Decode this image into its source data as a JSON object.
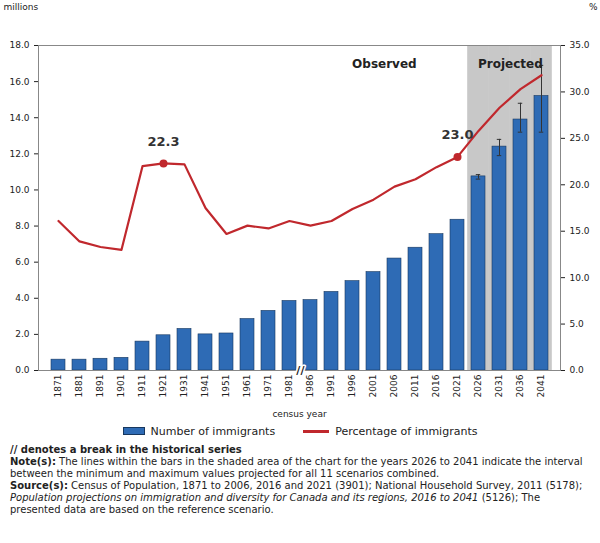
{
  "chart_data": {
    "type": "bar",
    "xlabel": "census year",
    "ylabel": "millions",
    "y2label": "%",
    "categories": [
      "1871",
      "1881",
      "1891",
      "1901",
      "1911",
      "1921",
      "1931",
      "1941",
      "1951",
      "1961",
      "1971",
      "1981",
      "1986",
      "1991",
      "1996",
      "2001",
      "2006",
      "2011",
      "2016",
      "2021",
      "2026",
      "2031",
      "2036",
      "2041"
    ],
    "series": [
      {
        "name": "Number of immigrants",
        "type": "bar",
        "color": "#2e6bb5",
        "values": [
          0.6,
          0.6,
          0.65,
          0.7,
          1.6,
          1.95,
          2.3,
          2.0,
          2.05,
          2.85,
          3.3,
          3.85,
          3.9,
          4.35,
          4.95,
          5.45,
          6.2,
          6.8,
          7.55,
          8.35,
          10.75,
          12.4,
          13.9,
          15.2
        ],
        "error_low": [
          null,
          null,
          null,
          null,
          null,
          null,
          null,
          null,
          null,
          null,
          null,
          null,
          null,
          null,
          null,
          null,
          null,
          null,
          null,
          null,
          10.6,
          11.9,
          13.2,
          13.2
        ],
        "error_high": [
          null,
          null,
          null,
          null,
          null,
          null,
          null,
          null,
          null,
          null,
          null,
          null,
          null,
          null,
          null,
          null,
          null,
          null,
          null,
          null,
          10.85,
          12.8,
          14.8,
          16.9
        ]
      },
      {
        "name": "Percentage of immigrants",
        "type": "line",
        "axis": "y2",
        "color": "#c0282d",
        "values": [
          16.1,
          13.9,
          13.3,
          13.0,
          22.0,
          22.3,
          22.2,
          17.5,
          14.7,
          15.6,
          15.3,
          16.1,
          15.6,
          16.1,
          17.4,
          18.4,
          19.8,
          20.6,
          21.9,
          23.0,
          25.8,
          28.3,
          30.3,
          31.8
        ]
      }
    ],
    "annotations": [
      {
        "series": "Percentage of immigrants",
        "category": "1921",
        "text": "22.3"
      },
      {
        "series": "Percentage of immigrants",
        "category": "2021",
        "text": "23.0"
      }
    ],
    "regions": [
      {
        "label": "Observed",
        "start": "1871",
        "end": "2021"
      },
      {
        "label": "Projected",
        "start": "2026",
        "end": "2041"
      }
    ],
    "axis_break": {
      "after": "1981",
      "symbol": "//"
    },
    "ylim": [
      0,
      18
    ],
    "yticks": [
      {
        "value": 0,
        "label": "0.0"
      },
      {
        "value": 2,
        "label": "2.0"
      },
      {
        "value": 4,
        "label": "4.0"
      },
      {
        "value": 6,
        "label": "6.0"
      },
      {
        "value": 8,
        "label": "8.0"
      },
      {
        "value": 10,
        "label": "10.0"
      },
      {
        "value": 12,
        "label": "12.0"
      },
      {
        "value": 14,
        "label": "14.0"
      },
      {
        "value": 16,
        "label": "16.0"
      },
      {
        "value": 18,
        "label": "18.0"
      }
    ],
    "y2lim": [
      0,
      35
    ],
    "y2ticks": [
      {
        "value": 0,
        "label": "0.0"
      },
      {
        "value": 5,
        "label": "5.0"
      },
      {
        "value": 10,
        "label": "10.0"
      },
      {
        "value": 15,
        "label": "15.0"
      },
      {
        "value": 20,
        "label": "20.0"
      },
      {
        "value": 25,
        "label": "25.0"
      },
      {
        "value": 30,
        "label": "30.0"
      },
      {
        "value": 35,
        "label": "35.0"
      }
    ],
    "grid": false,
    "legend": "bottom",
    "notes": [
      {
        "label": "// denotes a break in the historical series"
      },
      {
        "label": "Note(s):",
        "text": "The lines within the bars in the shaded area of the chart for the years 2026 to 2041 indicate the interval between the minimum and maximum values projected for all 11 scenarios combined."
      },
      {
        "label": "Source(s):",
        "text": "Census of Population, 1871 to 2006, 2016 and 2021 (3901); National Household Survey, 2011 (5178);",
        "title": "Population projections on immigration and diversity for Canada and its regions, 2016 to 2041",
        "text_after": "(5126); The presented data are based on the reference scenario."
      }
    ]
  }
}
